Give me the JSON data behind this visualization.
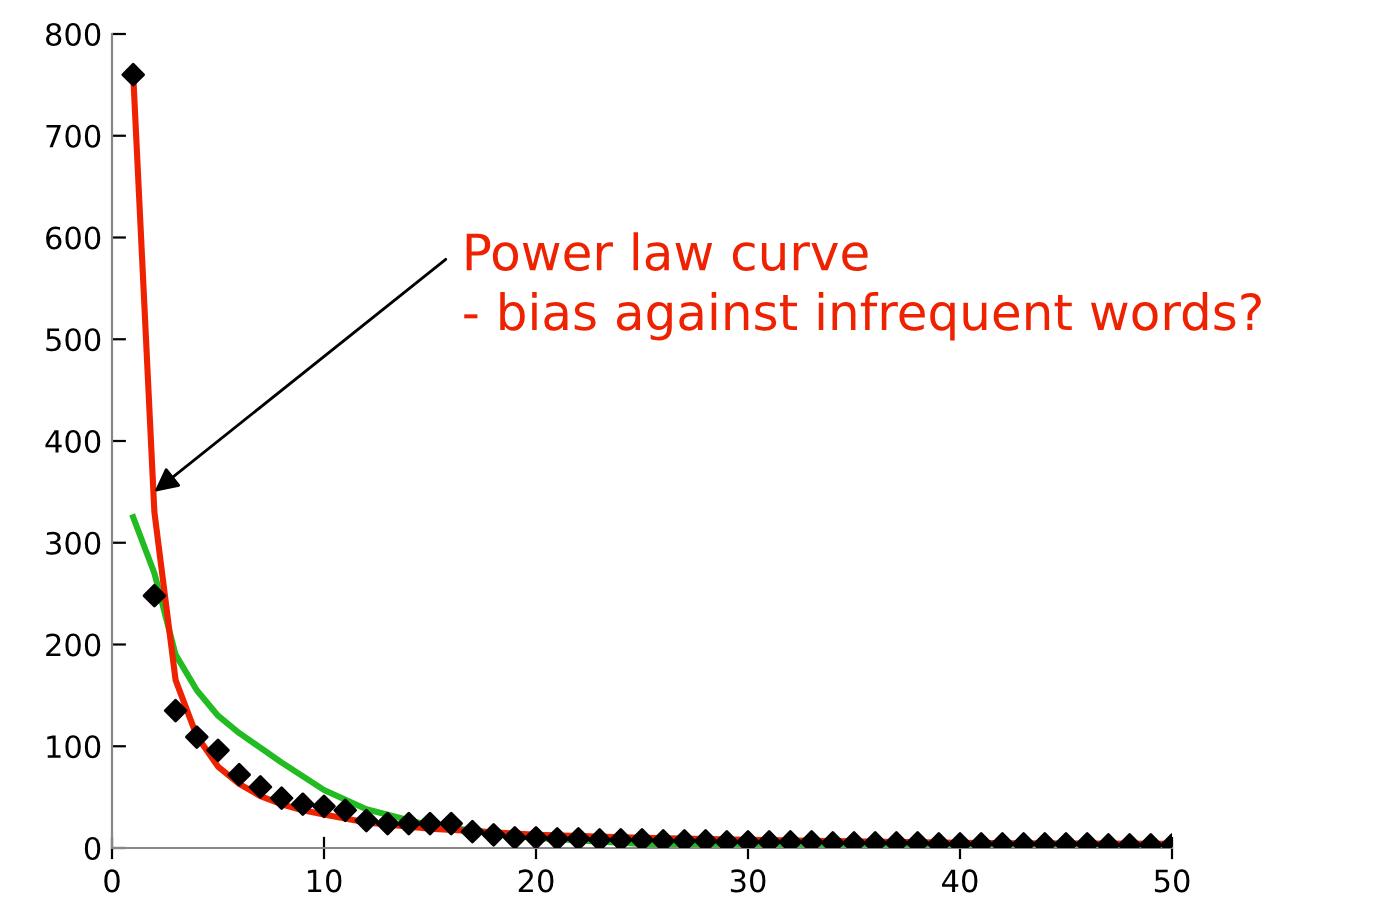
{
  "chart_data": {
    "type": "scatter",
    "xlim": [
      0,
      50
    ],
    "xticks": [
      0,
      10,
      20,
      30,
      40,
      50
    ],
    "ylim": [
      0,
      800
    ],
    "yticks": [
      0,
      100,
      200,
      300,
      400,
      500,
      600,
      700,
      800
    ],
    "grid": false,
    "legend": false,
    "series": [
      {
        "type": "line",
        "color": "#22bb22",
        "marker": "none",
        "x": [
          1,
          2,
          3,
          4,
          5,
          6,
          8,
          10,
          12,
          15,
          20,
          25,
          30,
          40,
          50
        ],
        "values": [
          325,
          270,
          190,
          155,
          130,
          113,
          84,
          57,
          38,
          22,
          10,
          4,
          1,
          0,
          0
        ]
      },
      {
        "type": "line",
        "color": "#ee2200",
        "marker": "none",
        "x": [
          1,
          2,
          3,
          4,
          5,
          6,
          7,
          8,
          9,
          10,
          12,
          15,
          20,
          25,
          30,
          40,
          50
        ],
        "values": [
          760,
          330,
          165,
          110,
          80,
          63,
          51,
          43,
          37,
          33,
          25,
          19,
          13,
          10,
          8,
          5,
          4
        ]
      },
      {
        "color": "#000000",
        "marker": "diamond",
        "x": [
          1,
          2,
          3,
          4,
          5,
          6,
          7,
          8,
          9,
          10,
          11,
          12,
          13,
          14,
          15,
          16,
          17,
          18,
          19,
          20,
          21,
          22,
          23,
          24,
          25,
          26,
          27,
          28,
          29,
          30,
          31,
          32,
          33,
          34,
          35,
          36,
          37,
          38,
          39,
          40,
          41,
          42,
          43,
          44,
          45,
          46,
          47,
          48,
          49,
          50
        ],
        "values": [
          760,
          248,
          135,
          109,
          96,
          72,
          60,
          49,
          43,
          41,
          37,
          27,
          24,
          24,
          24,
          24,
          16,
          13,
          10,
          10,
          9,
          9,
          8,
          8,
          8,
          7,
          7,
          7,
          6,
          6,
          6,
          6,
          6,
          5,
          5,
          5,
          5,
          5,
          4,
          4,
          4,
          4,
          4,
          4,
          4,
          4,
          3,
          3,
          3,
          3
        ]
      }
    ],
    "annotations": [
      {
        "text": "Power law curve\n- bias against infrequent words?",
        "x": 2,
        "y": 350
      }
    ]
  }
}
